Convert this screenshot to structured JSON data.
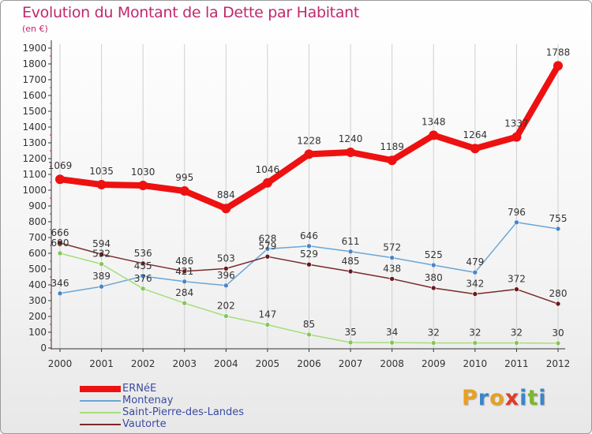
{
  "page": {
    "title": "Evolution du Montant de la Dette par Habitant",
    "unit": "(en €)",
    "brand": {
      "letters": [
        "P",
        "r",
        "o",
        "x",
        "i",
        "t",
        "i"
      ],
      "colors": [
        "#e8a020",
        "#3a86c8",
        "#e8a020",
        "#e03a2a",
        "#3a86c8",
        "#7ab82e",
        "#3a86c8"
      ]
    }
  },
  "chart_data": {
    "type": "line",
    "x": [
      "2000",
      "2001",
      "2002",
      "2003",
      "2004",
      "2005",
      "2006",
      "2007",
      "2008",
      "2009",
      "2010",
      "2011",
      "2012"
    ],
    "ylim": [
      0,
      1900
    ],
    "yticks": [
      0,
      100,
      200,
      300,
      400,
      500,
      600,
      700,
      800,
      900,
      1000,
      1100,
      1200,
      1300,
      1400,
      1500,
      1600,
      1700,
      1800,
      1900
    ],
    "grid": "vertical",
    "legend_position": "bottom-left",
    "series": [
      {
        "name": "ERNéE",
        "color": "#ee1111",
        "values": [
          1069,
          1035,
          1030,
          995,
          884,
          1046,
          1228,
          1240,
          1189,
          1348,
          1264,
          1337,
          1788
        ],
        "labels": [
          "1069",
          "1035",
          "1030",
          "995",
          "884",
          "1046",
          "1228",
          "1240",
          "1189",
          "1348",
          "1264",
          "1337",
          "1788"
        ]
      },
      {
        "name": "Montenay",
        "color": "#6aa6d6",
        "values": [
          346,
          389,
          455,
          421,
          396,
          628,
          646,
          611,
          572,
          525,
          479,
          796,
          755
        ],
        "labels": [
          "346",
          "389",
          "455",
          "421",
          "396",
          "628",
          "646",
          "611",
          "572",
          "525",
          "479",
          "796",
          "755"
        ]
      },
      {
        "name": "Saint-Pierre-des-Landes",
        "color": "#a6de7a",
        "values": [
          600,
          532,
          376,
          284,
          202,
          147,
          85,
          35,
          34,
          32,
          32,
          32,
          30
        ],
        "labels": [
          "600",
          "532",
          "376",
          "284",
          "202",
          "147",
          "85",
          "35",
          "34",
          "32",
          "32",
          "32",
          "30"
        ]
      },
      {
        "name": "Vautorte",
        "color": "#7a2a2a",
        "values": [
          666,
          594,
          536,
          486,
          503,
          579,
          529,
          485,
          438,
          380,
          342,
          372,
          280
        ],
        "labels": [
          "666",
          "594",
          "536",
          "486",
          "503",
          "579",
          "529",
          "485",
          "438",
          "380",
          "342",
          "372",
          "280"
        ]
      }
    ]
  }
}
